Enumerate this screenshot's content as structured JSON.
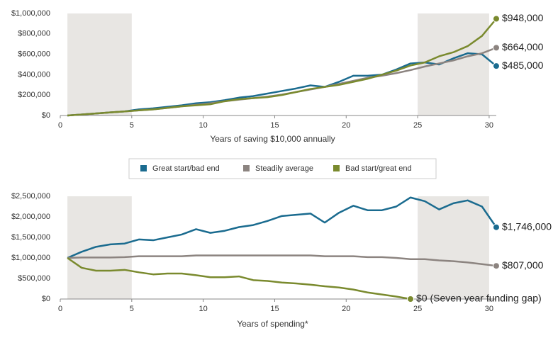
{
  "chart_data": [
    {
      "type": "line",
      "xlabel": "Years of saving $10,000 annually",
      "x": [
        0.5,
        1.5,
        2.5,
        3.5,
        4.5,
        5.5,
        6.5,
        7.5,
        8.5,
        9.5,
        10.5,
        11.5,
        12.5,
        13.5,
        14.5,
        15.5,
        16.5,
        17.5,
        18.5,
        19.5,
        20.5,
        21.5,
        22.5,
        23.5,
        24.5,
        25.5,
        26.5,
        27.5,
        28.5,
        29.5,
        30.5
      ],
      "xlim": [
        0,
        30.5
      ],
      "xticks": [
        0,
        5,
        10,
        15,
        20,
        25,
        30
      ],
      "ylim": [
        0,
        1000000
      ],
      "yticks": [
        {
          "value": 0,
          "label": "$0"
        },
        {
          "value": 200000,
          "label": "$200,000"
        },
        {
          "value": 400000,
          "label": "$400,000"
        },
        {
          "value": 600000,
          "label": "$600,000"
        },
        {
          "value": 800000,
          "label": "$800,000"
        },
        {
          "value": 1000000,
          "label": "$1,000,000"
        }
      ],
      "shaded": [
        [
          0.5,
          5
        ],
        [
          25,
          30
        ]
      ],
      "series": [
        {
          "name": "Great start/bad end",
          "color": "#1a6b8f",
          "end_label": "$485,000",
          "values": [
            0,
            10000,
            20000,
            30000,
            40000,
            60000,
            70000,
            85000,
            100000,
            120000,
            130000,
            150000,
            175000,
            190000,
            215000,
            240000,
            265000,
            295000,
            280000,
            330000,
            390000,
            390000,
            400000,
            450000,
            510000,
            520000,
            500000,
            560000,
            610000,
            600000,
            485000
          ]
        },
        {
          "name": "Steadily average",
          "color": "#8c8480",
          "end_label": "$664,000",
          "values": [
            0,
            10000,
            20000,
            30000,
            40000,
            50000,
            60000,
            75000,
            90000,
            105000,
            120000,
            140000,
            155000,
            170000,
            185000,
            205000,
            230000,
            255000,
            280000,
            310000,
            340000,
            370000,
            390000,
            415000,
            445000,
            480000,
            510000,
            540000,
            580000,
            610000,
            664000
          ]
        },
        {
          "name": "Bad start/great end",
          "color": "#7a8a2e",
          "end_label": "$948,000",
          "values": [
            0,
            10000,
            20000,
            30000,
            40000,
            50000,
            60000,
            75000,
            90000,
            100000,
            110000,
            140000,
            160000,
            170000,
            180000,
            200000,
            230000,
            260000,
            280000,
            300000,
            330000,
            360000,
            400000,
            440000,
            490000,
            520000,
            580000,
            620000,
            680000,
            780000,
            948000
          ]
        }
      ]
    },
    {
      "type": "line",
      "xlabel": "Years of spending*",
      "x": [
        0.5,
        1.5,
        2.5,
        3.5,
        4.5,
        5.5,
        6.5,
        7.5,
        8.5,
        9.5,
        10.5,
        11.5,
        12.5,
        13.5,
        14.5,
        15.5,
        16.5,
        17.5,
        18.5,
        19.5,
        20.5,
        21.5,
        22.5,
        23.5,
        24.5,
        25.5,
        26.5,
        27.5,
        28.5,
        29.5,
        30.5
      ],
      "xlim": [
        0,
        30.5
      ],
      "xticks": [
        0,
        5,
        10,
        15,
        20,
        25,
        30
      ],
      "ylim": [
        0,
        2500000
      ],
      "yticks": [
        {
          "value": 0,
          "label": "$0"
        },
        {
          "value": 500000,
          "label": "$500,000"
        },
        {
          "value": 1000000,
          "label": "$1,000,000"
        },
        {
          "value": 1500000,
          "label": "$1,500,000"
        },
        {
          "value": 2000000,
          "label": "$2,000,000"
        },
        {
          "value": 2500000,
          "label": "$2,500,000"
        }
      ],
      "shaded": [
        [
          0.5,
          5
        ],
        [
          25,
          30
        ]
      ],
      "series": [
        {
          "name": "Great start/bad end",
          "color": "#1a6b8f",
          "end_label": "$1,746,000",
          "values": [
            1000000,
            1150000,
            1270000,
            1330000,
            1350000,
            1450000,
            1430000,
            1500000,
            1570000,
            1700000,
            1610000,
            1660000,
            1750000,
            1800000,
            1900000,
            2020000,
            2050000,
            2080000,
            1860000,
            2100000,
            2270000,
            2160000,
            2160000,
            2250000,
            2470000,
            2380000,
            2180000,
            2330000,
            2400000,
            2250000,
            1746000
          ]
        },
        {
          "name": "Steadily average",
          "color": "#8c8480",
          "end_label": "$807,000",
          "values": [
            1000000,
            1010000,
            1010000,
            1010000,
            1020000,
            1040000,
            1040000,
            1040000,
            1040000,
            1060000,
            1060000,
            1060000,
            1060000,
            1060000,
            1060000,
            1060000,
            1060000,
            1060000,
            1040000,
            1040000,
            1040000,
            1020000,
            1020000,
            1000000,
            970000,
            970000,
            940000,
            920000,
            890000,
            850000,
            807000
          ]
        },
        {
          "name": "Bad start/great end",
          "color": "#7a8a2e",
          "end_label": "$0 (Seven year funding gap)",
          "values": [
            1000000,
            760000,
            690000,
            690000,
            710000,
            650000,
            600000,
            620000,
            620000,
            580000,
            530000,
            530000,
            550000,
            460000,
            440000,
            400000,
            380000,
            350000,
            310000,
            280000,
            230000,
            160000,
            110000,
            60000,
            0,
            null,
            null,
            null,
            null,
            null,
            null
          ]
        }
      ]
    }
  ]
}
